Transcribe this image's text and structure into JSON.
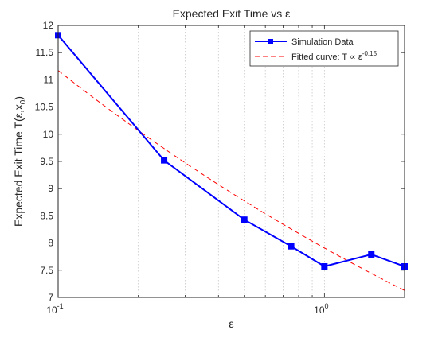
{
  "chart_data": {
    "type": "line",
    "title": "Expected Exit Time vs ε",
    "xlabel": "ε",
    "ylabel": "Expected Exit Time T(ε,x0)",
    "ylabel_subscript": "0",
    "xscale": "log",
    "xlim": [
      0.1,
      2
    ],
    "ylim": [
      7,
      12
    ],
    "grid": "x-minor-dotted",
    "legend_position": "top-right",
    "x_ticks": [
      {
        "value": 0.1,
        "base": "10",
        "exp": "-1"
      },
      {
        "value": 1,
        "base": "10",
        "exp": "0"
      }
    ],
    "y_ticks": [
      "7",
      "7.5",
      "8",
      "8.5",
      "9",
      "9.5",
      "10",
      "10.5",
      "11",
      "11.5",
      "12"
    ],
    "series": [
      {
        "name": "Simulation Data",
        "color": "#0000ff",
        "style": "solid-square-markers",
        "x": [
          0.1,
          0.25,
          0.5,
          0.75,
          1.0,
          1.5,
          2.0
        ],
        "y": [
          11.82,
          9.52,
          8.43,
          7.94,
          7.57,
          7.79,
          7.57
        ]
      },
      {
        "name": "Fitted curve: T ∝ ε",
        "name_superscript": "-0.15",
        "color": "#ff0000",
        "style": "dashed",
        "fit": {
          "a": 7.909,
          "b": -0.15
        },
        "x": [
          0.1,
          0.2,
          0.5,
          1.0,
          2.0
        ],
        "y": [
          11.16,
          10.07,
          8.78,
          7.91,
          7.14
        ]
      }
    ]
  }
}
